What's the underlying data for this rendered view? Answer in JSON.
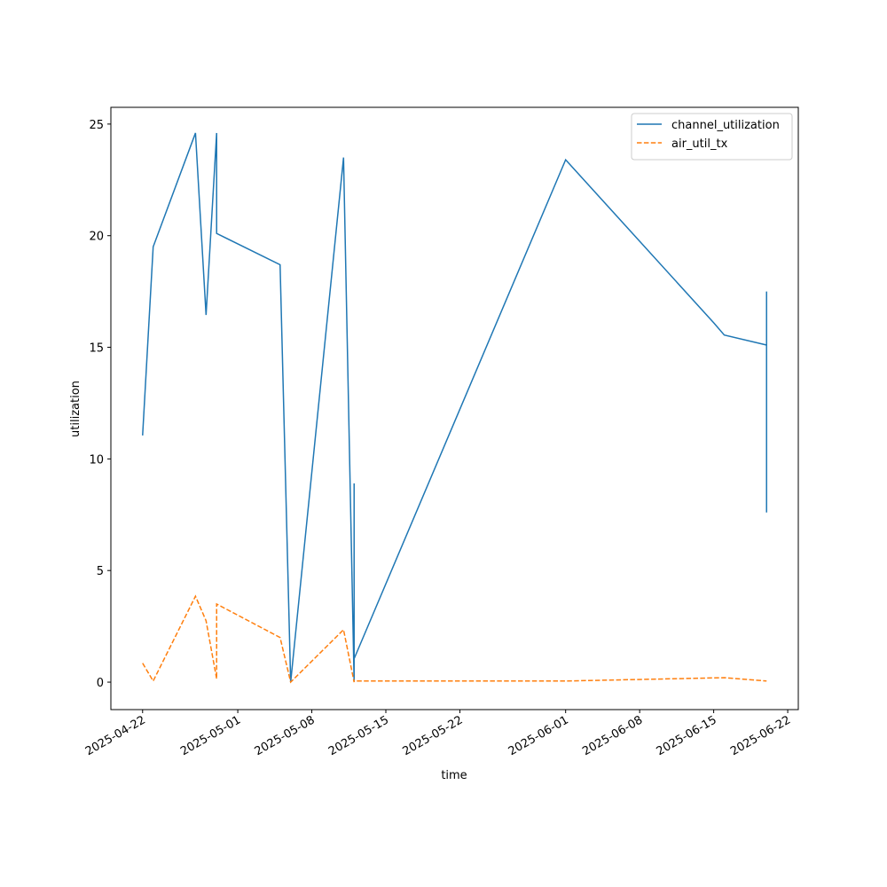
{
  "chart_data": {
    "type": "line",
    "xlabel": "time",
    "ylabel": "utilization",
    "xlim": [
      "2025-04-19",
      "2025-06-23"
    ],
    "ylim": [
      -1.23,
      25.75
    ],
    "xticks": [
      "2025-04-22",
      "2025-05-01",
      "2025-05-08",
      "2025-05-15",
      "2025-05-22",
      "2025-06-01",
      "2025-06-08",
      "2025-06-15",
      "2025-06-22"
    ],
    "yticks": [
      0,
      5,
      10,
      15,
      20,
      25
    ],
    "legend": "upper right",
    "series": [
      {
        "name": "channel_utilization",
        "color": "#1f77b4",
        "dash": "solid",
        "x": [
          "2025-04-22",
          "2025-04-23",
          "2025-04-27",
          "2025-04-28",
          "2025-04-29",
          "2025-04-29",
          "2025-05-05",
          "2025-05-06",
          "2025-05-11",
          "2025-05-12",
          "2025-05-12",
          "2025-05-12",
          "2025-05-12",
          "2025-05-12",
          "2025-06-01",
          "2025-06-15",
          "2025-06-16",
          "2025-06-20",
          "2025-06-20",
          "2025-06-20"
        ],
        "values": [
          11.05,
          19.5,
          24.6,
          16.45,
          24.6,
          20.1,
          18.7,
          0.0,
          23.5,
          0.0,
          8.9,
          1.15,
          4.5,
          1.05,
          23.4,
          16.1,
          15.55,
          15.1,
          7.6,
          17.5
        ]
      },
      {
        "name": "air_util_tx",
        "color": "#ff7f0e",
        "dash": "dashed",
        "x": [
          "2025-04-22",
          "2025-04-23",
          "2025-04-27",
          "2025-04-28",
          "2025-04-29",
          "2025-04-29",
          "2025-05-05",
          "2025-05-06",
          "2025-05-11",
          "2025-05-12",
          "2025-05-12",
          "2025-06-01",
          "2025-06-16",
          "2025-06-20"
        ],
        "values": [
          0.85,
          0.05,
          3.85,
          2.75,
          0.15,
          3.5,
          2.0,
          0.0,
          2.35,
          0.0,
          0.05,
          0.05,
          0.2,
          0.05
        ]
      }
    ]
  }
}
